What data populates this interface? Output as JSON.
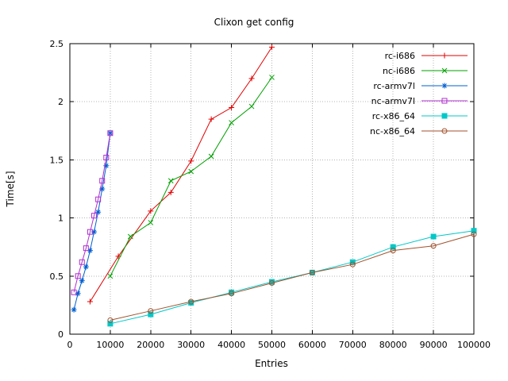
{
  "chart_data": {
    "type": "line",
    "title": "Clixon get config",
    "xlabel": "Entries",
    "ylabel": "Time[s]",
    "xlim": [
      0,
      100000
    ],
    "ylim": [
      0,
      2.5
    ],
    "xticks": [
      0,
      10000,
      20000,
      30000,
      40000,
      50000,
      60000,
      70000,
      80000,
      90000,
      100000
    ],
    "yticks": [
      0,
      0.5,
      1,
      1.5,
      2,
      2.5
    ],
    "grid": true,
    "legend_position": "top-right-inside",
    "colors": {
      "grid": "#b4b4b4",
      "border": "#000000",
      "text": "#000000"
    },
    "series": [
      {
        "name": "rc-i686",
        "color": "#e00000",
        "marker": "plus",
        "points": [
          [
            5000,
            0.28
          ],
          [
            12000,
            0.67
          ],
          [
            20000,
            1.06
          ],
          [
            25000,
            1.22
          ],
          [
            30000,
            1.49
          ],
          [
            35000,
            1.85
          ],
          [
            40000,
            1.95
          ],
          [
            45000,
            2.2
          ],
          [
            50000,
            2.47
          ]
        ]
      },
      {
        "name": "nc-i686",
        "color": "#00a000",
        "marker": "cross",
        "points": [
          [
            10000,
            0.5
          ],
          [
            15000,
            0.84
          ],
          [
            20000,
            0.96
          ],
          [
            25000,
            1.32
          ],
          [
            30000,
            1.4
          ],
          [
            35000,
            1.53
          ],
          [
            40000,
            1.82
          ],
          [
            45000,
            1.96
          ],
          [
            50000,
            2.21
          ]
        ]
      },
      {
        "name": "rc-armv7l",
        "color": "#0060d0",
        "marker": "asterisk",
        "points": [
          [
            1000,
            0.21
          ],
          [
            2000,
            0.35
          ],
          [
            3000,
            0.46
          ],
          [
            4000,
            0.58
          ],
          [
            5000,
            0.72
          ],
          [
            6000,
            0.88
          ],
          [
            7000,
            1.05
          ],
          [
            8000,
            1.25
          ],
          [
            9000,
            1.45
          ],
          [
            10000,
            1.73
          ]
        ]
      },
      {
        "name": "nc-armv7l",
        "color": "#b030d0",
        "marker": "square-open",
        "points": [
          [
            1000,
            0.36
          ],
          [
            2000,
            0.5
          ],
          [
            3000,
            0.62
          ],
          [
            4000,
            0.74
          ],
          [
            5000,
            0.88
          ],
          [
            6000,
            1.02
          ],
          [
            7000,
            1.16
          ],
          [
            8000,
            1.32
          ],
          [
            9000,
            1.52
          ],
          [
            10000,
            1.73
          ]
        ]
      },
      {
        "name": "rc-x86_64",
        "color": "#00c8c8",
        "marker": "square-filled",
        "points": [
          [
            10000,
            0.09
          ],
          [
            20000,
            0.17
          ],
          [
            30000,
            0.27
          ],
          [
            40000,
            0.36
          ],
          [
            50000,
            0.45
          ],
          [
            60000,
            0.53
          ],
          [
            70000,
            0.62
          ],
          [
            80000,
            0.75
          ],
          [
            90000,
            0.84
          ],
          [
            100000,
            0.89
          ]
        ]
      },
      {
        "name": "nc-x86_64",
        "color": "#a0522d",
        "marker": "circle-open",
        "points": [
          [
            10000,
            0.12
          ],
          [
            20000,
            0.2
          ],
          [
            30000,
            0.28
          ],
          [
            40000,
            0.35
          ],
          [
            50000,
            0.44
          ],
          [
            60000,
            0.53
          ],
          [
            70000,
            0.6
          ],
          [
            80000,
            0.72
          ],
          [
            90000,
            0.76
          ],
          [
            100000,
            0.86
          ]
        ]
      }
    ]
  }
}
